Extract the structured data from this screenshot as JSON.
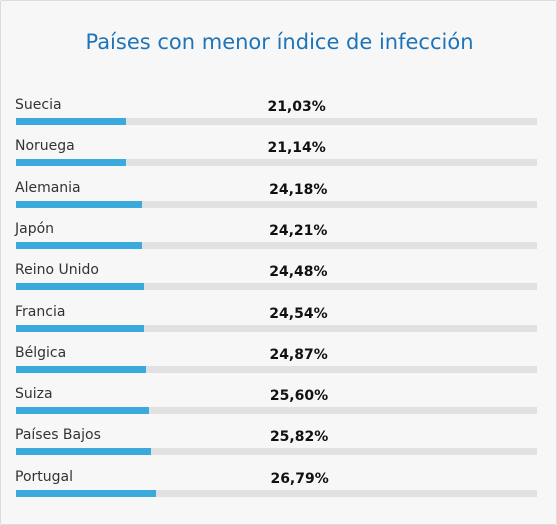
{
  "chart_data": {
    "type": "bar",
    "title": "Países con menor índice de infección",
    "xlim": [
      0,
      100
    ],
    "bar_color": "#3aaadc",
    "track_color": "#e1e1e1",
    "categories": [
      "Suecia",
      "Noruega",
      "Alemania",
      "Japón",
      "Reino Unido",
      "Francia",
      "Bélgica",
      "Suiza",
      "Países Bajos",
      "Portugal"
    ],
    "values": [
      21.03,
      21.14,
      24.18,
      24.21,
      24.48,
      24.54,
      24.87,
      25.6,
      25.82,
      26.79
    ],
    "value_labels": [
      "21,03%",
      "21,14%",
      "24,18%",
      "24,21%",
      "24,48%",
      "24,54%",
      "24,87%",
      "25,60%",
      "25,82%",
      "26,79%"
    ]
  }
}
